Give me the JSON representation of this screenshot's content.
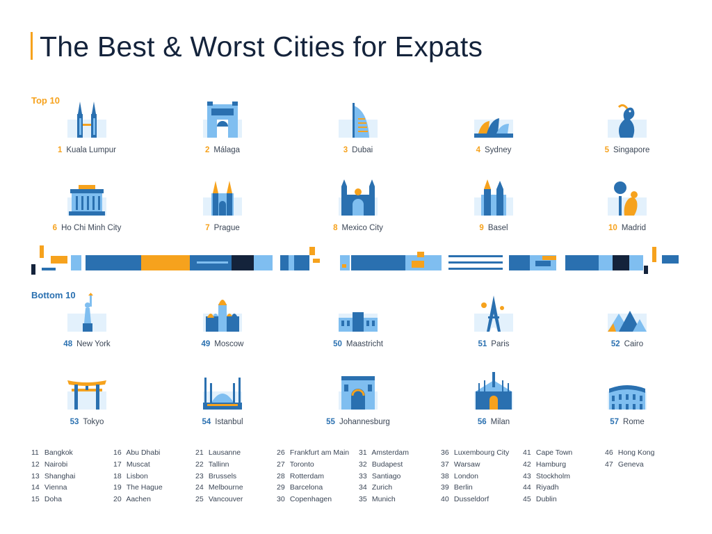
{
  "title": "The Best & Worst Cities for Expats",
  "top_label": "Top 10",
  "bottom_label": "Bottom 10",
  "colors": {
    "orange": "#f6a21d",
    "blue": "#2a70b0",
    "light_blue": "#7fbef0",
    "pale_blue": "#e3f1fc",
    "navy": "#14233b"
  },
  "top10": [
    {
      "rank": "1",
      "name": "Kuala Lumpur",
      "icon": "petronas-towers-icon"
    },
    {
      "rank": "2",
      "name": "Málaga",
      "icon": "malaga-building-icon"
    },
    {
      "rank": "3",
      "name": "Dubai",
      "icon": "burj-al-arab-icon"
    },
    {
      "rank": "4",
      "name": "Sydney",
      "icon": "opera-house-icon"
    },
    {
      "rank": "5",
      "name": "Singapore",
      "icon": "merlion-icon"
    },
    {
      "rank": "6",
      "name": "Ho Chi Minh City",
      "icon": "mausoleum-icon"
    },
    {
      "rank": "7",
      "name": "Prague",
      "icon": "tyn-church-icon"
    },
    {
      "rank": "8",
      "name": "Mexico City",
      "icon": "cathedral-icon"
    },
    {
      "rank": "9",
      "name": "Basel",
      "icon": "basel-minster-icon"
    },
    {
      "rank": "10",
      "name": "Madrid",
      "icon": "bear-tree-statue-icon"
    }
  ],
  "bottom10": [
    {
      "rank": "48",
      "name": "New York",
      "icon": "statue-of-liberty-icon"
    },
    {
      "rank": "49",
      "name": "Moscow",
      "icon": "st-basils-cathedral-icon"
    },
    {
      "rank": "50",
      "name": "Maastricht",
      "icon": "maastricht-building-icon"
    },
    {
      "rank": "51",
      "name": "Paris",
      "icon": "eiffel-tower-icon"
    },
    {
      "rank": "52",
      "name": "Cairo",
      "icon": "pyramids-icon"
    },
    {
      "rank": "53",
      "name": "Tokyo",
      "icon": "torii-gate-icon"
    },
    {
      "rank": "54",
      "name": "Istanbul",
      "icon": "blue-mosque-icon"
    },
    {
      "rank": "55",
      "name": "Johannesburg",
      "icon": "johannesburg-building-icon"
    },
    {
      "rank": "56",
      "name": "Milan",
      "icon": "milan-cathedral-icon"
    },
    {
      "rank": "57",
      "name": "Rome",
      "icon": "colosseum-icon"
    }
  ],
  "middle_ranks": [
    [
      {
        "rank": "11",
        "name": "Bangkok"
      },
      {
        "rank": "12",
        "name": "Nairobi"
      },
      {
        "rank": "13",
        "name": "Shanghai"
      },
      {
        "rank": "14",
        "name": "Vienna"
      },
      {
        "rank": "15",
        "name": "Doha"
      }
    ],
    [
      {
        "rank": "16",
        "name": "Abu Dhabi"
      },
      {
        "rank": "17",
        "name": "Muscat"
      },
      {
        "rank": "18",
        "name": "Lisbon"
      },
      {
        "rank": "19",
        "name": "The Hague"
      },
      {
        "rank": "20",
        "name": "Aachen"
      }
    ],
    [
      {
        "rank": "21",
        "name": "Lausanne"
      },
      {
        "rank": "22",
        "name": "Tallinn"
      },
      {
        "rank": "23",
        "name": "Brussels"
      },
      {
        "rank": "24",
        "name": "Melbourne"
      },
      {
        "rank": "25",
        "name": "Vancouver"
      }
    ],
    [
      {
        "rank": "26",
        "name": "Frankfurt am Main"
      },
      {
        "rank": "27",
        "name": "Toronto"
      },
      {
        "rank": "28",
        "name": "Rotterdam"
      },
      {
        "rank": "29",
        "name": "Barcelona"
      },
      {
        "rank": "30",
        "name": "Copenhagen"
      }
    ],
    [
      {
        "rank": "31",
        "name": "Amsterdam"
      },
      {
        "rank": "32",
        "name": "Budapest"
      },
      {
        "rank": "33",
        "name": "Santiago"
      },
      {
        "rank": "34",
        "name": "Zurich"
      },
      {
        "rank": "35",
        "name": "Munich"
      }
    ],
    [
      {
        "rank": "36",
        "name": "Luxembourg City"
      },
      {
        "rank": "37",
        "name": "Warsaw"
      },
      {
        "rank": "38",
        "name": "London"
      },
      {
        "rank": "39",
        "name": "Berlin"
      },
      {
        "rank": "40",
        "name": "Dusseldorf"
      }
    ],
    [
      {
        "rank": "41",
        "name": "Cape Town"
      },
      {
        "rank": "42",
        "name": "Hamburg"
      },
      {
        "rank": "43",
        "name": "Stockholm"
      },
      {
        "rank": "44",
        "name": "Riyadh"
      },
      {
        "rank": "45",
        "name": "Dublin"
      }
    ],
    [
      {
        "rank": "46",
        "name": "Hong Kong"
      },
      {
        "rank": "47",
        "name": "Geneva"
      }
    ]
  ]
}
